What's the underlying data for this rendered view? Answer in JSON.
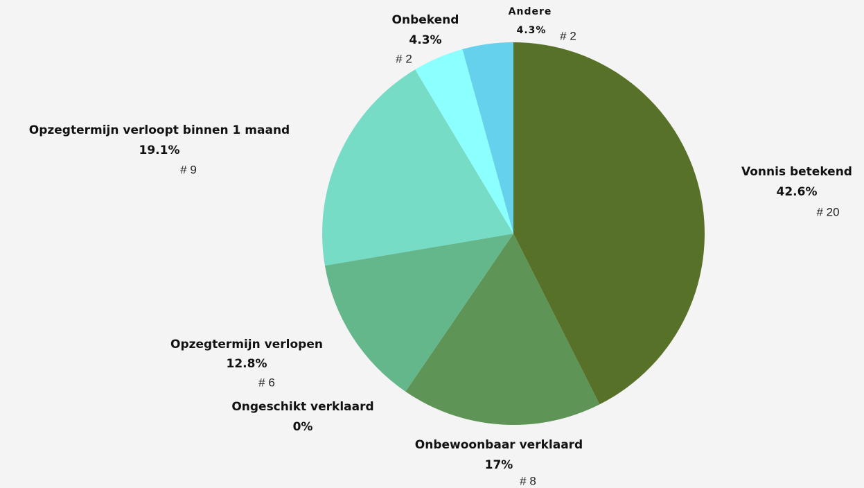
{
  "chart_data": {
    "type": "pie",
    "categories": [
      "Vonnis betekend",
      "Onbewoonbaar verklaard",
      "Ongeschikt verklaard",
      "Opzegtermijn verlopen",
      "Opzegtermijn verloopt binnen 1 maand",
      "Onbekend",
      "Andere"
    ],
    "values": [
      42.6,
      17,
      0,
      12.8,
      19.1,
      4.3,
      4.3
    ],
    "value_labels": [
      "42.6%",
      "17%",
      "0%",
      "12.8%",
      "19.1%",
      "4.3%",
      "4.3%"
    ],
    "count_labels": [
      "# 20",
      "# 8",
      null,
      "# 6",
      "# 9",
      "# 2",
      "# 2"
    ],
    "colors": [
      "#587129",
      "#5e9455",
      "#62a67e",
      "#64b78b",
      "#76dcc6",
      "#8cffff",
      "#66d1ec"
    ]
  }
}
